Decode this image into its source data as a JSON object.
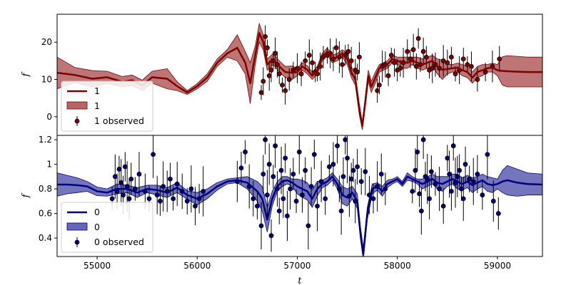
{
  "chart_data": [
    {
      "type": "line",
      "panel": "top",
      "xlabel": "",
      "ylabel": "f",
      "xlim": [
        54600,
        59450
      ],
      "ylim": [
        -5.0,
        27.5
      ],
      "yticks": [
        0,
        10,
        20
      ],
      "xticks": [],
      "grid": false,
      "legend_placement": "lower-left",
      "colors": {
        "line": "#800000",
        "band": "#b76666",
        "points": "#800000"
      },
      "legend": {
        "line": "1",
        "band": "1",
        "observed": "1 observed"
      },
      "series": [
        {
          "name": "1",
          "x": [
            54600,
            54780,
            54950,
            55100,
            55250,
            55350,
            55450,
            55550,
            55700,
            55800,
            55900,
            56000,
            56100,
            56200,
            56300,
            56400,
            56480,
            56530,
            56580,
            56620,
            56660,
            56700,
            56760,
            56820,
            56880,
            56950,
            57000,
            57050,
            57100,
            57150,
            57200,
            57250,
            57300,
            57350,
            57400,
            57450,
            57500,
            57540,
            57580,
            57620,
            57650,
            57680,
            57710,
            57740,
            57780,
            57820,
            57860,
            57900,
            57950,
            58000,
            58050,
            58100,
            58150,
            58200,
            58250,
            58300,
            58350,
            58400,
            58450,
            58500,
            58550,
            58600,
            58650,
            58700,
            58750,
            58800,
            58850,
            58900,
            58950,
            59000,
            59050,
            59100,
            59200,
            59300,
            59450
          ],
          "y": [
            11.8,
            11.2,
            10.2,
            10.6,
            9.4,
            9.8,
            8.4,
            10.6,
            10.2,
            8.2,
            6.5,
            8.2,
            10.5,
            14.5,
            17.0,
            18.5,
            14.5,
            9.0,
            16.5,
            22.5,
            20.0,
            14.0,
            15.5,
            13.5,
            12.0,
            11.8,
            12.0,
            13.5,
            12.6,
            11.0,
            12.5,
            16.0,
            17.5,
            15.5,
            16.0,
            17.0,
            15.5,
            12.0,
            10.0,
            2.0,
            -2.5,
            4.0,
            11.0,
            8.0,
            10.5,
            13.0,
            13.5,
            14.0,
            15.5,
            15.0,
            14.5,
            14.5,
            15.0,
            14.5,
            14.0,
            14.5,
            15.0,
            13.5,
            12.6,
            12.8,
            13.0,
            13.2,
            12.5,
            12.0,
            10.5,
            12.0,
            12.5,
            13.0,
            13.2,
            12.5,
            12.3,
            12.2,
            12.1,
            12.0,
            12.0
          ],
          "band_lower": [
            7.5,
            9.2,
            8.0,
            9.0,
            8.0,
            8.4,
            7.0,
            9.0,
            7.5,
            7.0,
            6.0,
            7.5,
            9.5,
            13.5,
            16.0,
            15.0,
            11.5,
            3.5,
            14.0,
            20.0,
            18.0,
            12.5,
            14.0,
            12.0,
            10.5,
            10.0,
            11.0,
            12.5,
            11.5,
            10.0,
            11.5,
            15.0,
            16.5,
            14.5,
            15.0,
            16.0,
            14.0,
            10.5,
            8.5,
            0.5,
            -3.5,
            2.5,
            9.5,
            6.5,
            9.0,
            12.0,
            12.5,
            13.0,
            14.5,
            14.0,
            13.0,
            13.0,
            14.0,
            13.0,
            12.5,
            13.0,
            13.5,
            11.5,
            10.0,
            11.5,
            12.0,
            12.0,
            11.0,
            10.5,
            9.0,
            10.5,
            11.0,
            12.0,
            12.0,
            11.0,
            8.5,
            8.0,
            8.0,
            8.0,
            8.0
          ],
          "band_upper": [
            16.0,
            13.2,
            12.4,
            12.2,
            10.8,
            11.2,
            9.8,
            12.2,
            12.9,
            9.4,
            7.0,
            8.9,
            11.5,
            15.5,
            18.0,
            22.0,
            17.5,
            14.5,
            19.0,
            25.0,
            22.0,
            15.5,
            17.0,
            15.0,
            13.5,
            13.6,
            13.0,
            14.5,
            13.7,
            12.0,
            13.5,
            17.0,
            18.5,
            16.5,
            17.0,
            18.0,
            17.0,
            13.5,
            11.5,
            3.5,
            -1.5,
            5.5,
            12.5,
            9.5,
            12.0,
            14.0,
            14.5,
            15.0,
            16.5,
            16.0,
            16.0,
            16.0,
            16.0,
            16.0,
            15.5,
            16.0,
            16.5,
            15.5,
            15.2,
            14.1,
            14.0,
            14.4,
            14.0,
            13.5,
            12.0,
            13.5,
            14.0,
            14.0,
            14.4,
            14.0,
            16.1,
            16.4,
            16.2,
            16.0,
            16.0
          ]
        },
        {
          "name": "1 observed",
          "x": [
            56640,
            56660,
            56680,
            56700,
            56720,
            56740,
            56760,
            56780,
            56800,
            56820,
            56850,
            56880,
            56920,
            56960,
            57000,
            57040,
            57080,
            57120,
            57150,
            57180,
            57200,
            57230,
            57260,
            57300,
            57330,
            57360,
            57390,
            57420,
            57450,
            57480,
            57510,
            57540,
            57580,
            57600,
            57620,
            57800,
            57820,
            57850,
            57880,
            57910,
            57940,
            57970,
            58000,
            58030,
            58060,
            58100,
            58130,
            58160,
            58190,
            58210,
            58230,
            58260,
            58290,
            58320,
            58350,
            58380,
            58420,
            58460,
            58500,
            58540,
            58580,
            58620,
            58660,
            58700,
            58740,
            58800,
            58880,
            58950,
            59020
          ],
          "y": [
            6.5,
            9.5,
            21.5,
            18.5,
            11.0,
            12.5,
            15.0,
            17.0,
            14.0,
            11.5,
            8.5,
            7.0,
            10.0,
            12.5,
            13.0,
            11.5,
            15.0,
            16.5,
            14.5,
            12.0,
            11.5,
            13.5,
            16.0,
            16.5,
            17.0,
            15.5,
            18.5,
            16.0,
            14.0,
            16.5,
            17.5,
            15.0,
            12.5,
            12.0,
            16.0,
            7.0,
            8.5,
            13.5,
            14.0,
            11.0,
            16.5,
            14.5,
            12.5,
            13.0,
            14.5,
            17.5,
            15.5,
            18.0,
            13.5,
            21.0,
            14.0,
            17.5,
            16.0,
            12.5,
            13.0,
            14.0,
            13.0,
            15.0,
            14.5,
            16.0,
            11.5,
            12.5,
            15.5,
            14.0,
            13.5,
            10.0,
            12.0,
            13.5,
            15.5
          ]
        }
      ]
    },
    {
      "type": "line",
      "panel": "bottom",
      "xlabel": "t",
      "ylabel": "f",
      "xlim": [
        54600,
        59450
      ],
      "ylim": [
        0.25,
        1.235
      ],
      "yticks": [
        0.4,
        0.6,
        0.8,
        1.0,
        1.2
      ],
      "xticks": [
        55000,
        56000,
        57000,
        58000,
        59000
      ],
      "grid": false,
      "legend_placement": "lower-left",
      "colors": {
        "line": "#000080",
        "band": "#6666b7",
        "points": "#000080"
      },
      "legend": {
        "line": "0",
        "band": "0",
        "observed": "0 observed"
      },
      "series": [
        {
          "name": "0",
          "x": [
            54600,
            54700,
            54800,
            54900,
            55000,
            55100,
            55200,
            55300,
            55400,
            55500,
            55600,
            55700,
            55800,
            55900,
            56000,
            56100,
            56200,
            56300,
            56400,
            56500,
            56600,
            56650,
            56700,
            56750,
            56800,
            56850,
            56900,
            56950,
            57000,
            57050,
            57100,
            57150,
            57200,
            57250,
            57300,
            57350,
            57400,
            57450,
            57500,
            57550,
            57600,
            57630,
            57660,
            57700,
            57750,
            57800,
            57850,
            57900,
            57950,
            58000,
            58050,
            58100,
            58150,
            58200,
            58250,
            58300,
            58350,
            58400,
            58450,
            58500,
            58550,
            58600,
            58650,
            58700,
            58750,
            58800,
            58850,
            58900,
            58950,
            59000,
            59050,
            59100,
            59200,
            59300,
            59450
          ],
          "y": [
            0.835,
            0.835,
            0.83,
            0.82,
            0.78,
            0.77,
            0.8,
            0.8,
            0.77,
            0.8,
            0.79,
            0.77,
            0.81,
            0.75,
            0.72,
            0.76,
            0.82,
            0.86,
            0.87,
            0.85,
            0.78,
            0.72,
            0.55,
            0.72,
            0.82,
            0.86,
            0.87,
            0.85,
            0.82,
            0.8,
            0.78,
            0.72,
            0.8,
            0.84,
            0.86,
            0.9,
            0.84,
            0.75,
            0.73,
            0.77,
            0.7,
            0.45,
            0.27,
            0.6,
            0.8,
            0.82,
            0.78,
            0.84,
            0.86,
            0.88,
            0.84,
            0.9,
            0.88,
            0.86,
            0.84,
            0.86,
            0.88,
            0.85,
            0.84,
            0.86,
            0.88,
            0.86,
            0.84,
            0.86,
            0.83,
            0.85,
            0.87,
            0.84,
            0.83,
            0.84,
            0.86,
            0.87,
            0.85,
            0.84,
            0.835
          ],
          "band_lower": [
            0.74,
            0.76,
            0.77,
            0.78,
            0.745,
            0.74,
            0.76,
            0.77,
            0.73,
            0.77,
            0.75,
            0.73,
            0.77,
            0.715,
            0.67,
            0.72,
            0.79,
            0.84,
            0.85,
            0.8,
            0.7,
            0.62,
            0.45,
            0.66,
            0.78,
            0.82,
            0.84,
            0.82,
            0.76,
            0.73,
            0.71,
            0.65,
            0.74,
            0.81,
            0.83,
            0.87,
            0.8,
            0.68,
            0.66,
            0.72,
            0.64,
            0.4,
            0.22,
            0.55,
            0.76,
            0.79,
            0.74,
            0.81,
            0.84,
            0.86,
            0.82,
            0.87,
            0.86,
            0.84,
            0.8,
            0.82,
            0.84,
            0.8,
            0.78,
            0.82,
            0.84,
            0.8,
            0.79,
            0.81,
            0.77,
            0.8,
            0.82,
            0.78,
            0.77,
            0.8,
            0.77,
            0.75,
            0.74,
            0.75,
            0.75
          ],
          "band_upper": [
            0.93,
            0.91,
            0.89,
            0.86,
            0.815,
            0.8,
            0.84,
            0.83,
            0.81,
            0.83,
            0.83,
            0.81,
            0.85,
            0.785,
            0.77,
            0.8,
            0.85,
            0.88,
            0.89,
            0.9,
            0.86,
            0.82,
            0.65,
            0.78,
            0.86,
            0.9,
            0.9,
            0.88,
            0.88,
            0.87,
            0.85,
            0.79,
            0.86,
            0.87,
            0.89,
            0.93,
            0.88,
            0.82,
            0.8,
            0.82,
            0.76,
            0.5,
            0.32,
            0.65,
            0.84,
            0.85,
            0.82,
            0.87,
            0.88,
            0.9,
            0.86,
            0.93,
            0.9,
            0.88,
            0.88,
            0.9,
            0.92,
            0.9,
            0.9,
            0.9,
            0.92,
            0.92,
            0.89,
            0.91,
            0.89,
            0.9,
            0.92,
            0.9,
            0.89,
            0.88,
            0.95,
            0.99,
            0.96,
            0.93,
            0.92
          ]
        },
        {
          "name": "0 observed",
          "x": [
            55150,
            55180,
            55200,
            55220,
            55240,
            55260,
            55280,
            55300,
            55320,
            55340,
            55380,
            55420,
            55480,
            55520,
            55560,
            55600,
            55630,
            55660,
            55700,
            55730,
            55760,
            55800,
            55850,
            55900,
            55940,
            55980,
            56020,
            56060,
            56400,
            56440,
            56480,
            56520,
            56560,
            56600,
            56640,
            56660,
            56680,
            56700,
            56720,
            56740,
            56760,
            56780,
            56800,
            56820,
            56840,
            56860,
            56880,
            56900,
            56930,
            56960,
            56990,
            57020,
            57050,
            57080,
            57110,
            57140,
            57170,
            57200,
            57240,
            57280,
            57320,
            57360,
            57400,
            57420,
            57440,
            57460,
            57480,
            57500,
            57520,
            57540,
            57560,
            57580,
            57600,
            57640,
            57680,
            57720,
            57760,
            57800,
            57840,
            57880,
            58150,
            58180,
            58200,
            58220,
            58240,
            58260,
            58280,
            58300,
            58320,
            58340,
            58380,
            58420,
            58460,
            58500,
            58520,
            58540,
            58560,
            58580,
            58600,
            58620,
            58640,
            58660,
            58680,
            58720,
            58760,
            58800,
            58850,
            58900,
            58960,
            59010
          ],
          "y": [
            0.72,
            0.9,
            0.78,
            0.96,
            0.85,
            0.75,
            0.98,
            0.82,
            0.72,
            0.88,
            0.8,
            0.92,
            0.78,
            0.72,
            1.08,
            0.75,
            0.7,
            0.82,
            0.78,
            0.88,
            0.72,
            0.84,
            0.78,
            0.7,
            0.8,
            0.66,
            0.72,
            0.78,
            0.86,
            0.97,
            1.1,
            0.82,
            0.72,
            0.66,
            0.5,
            0.92,
            1.2,
            0.75,
            1.0,
            0.42,
            0.9,
            1.15,
            0.8,
            0.62,
            0.95,
            0.72,
            1.05,
            0.58,
            0.8,
            0.92,
            0.7,
            1.1,
            0.75,
            0.95,
            0.5,
            0.82,
            1.08,
            0.66,
            0.86,
            0.72,
            0.98,
            1.0,
            1.15,
            0.8,
            0.62,
            0.9,
            1.2,
            1.05,
            0.74,
            0.88,
            0.95,
            0.7,
            0.98,
            0.86,
            0.94,
            0.75,
            0.72,
            0.82,
            0.92,
            0.8,
            0.78,
            0.95,
            1.1,
            0.76,
            0.62,
            1.2,
            0.9,
            0.88,
            0.72,
            0.94,
            0.84,
            0.8,
            0.66,
            1.05,
            0.92,
            0.78,
            1.15,
            0.85,
            0.9,
            0.95,
            0.8,
            0.72,
            1.0,
            0.88,
            0.86,
            0.92,
            0.75,
            1.08,
            0.7,
            0.6
          ]
        }
      ]
    }
  ]
}
